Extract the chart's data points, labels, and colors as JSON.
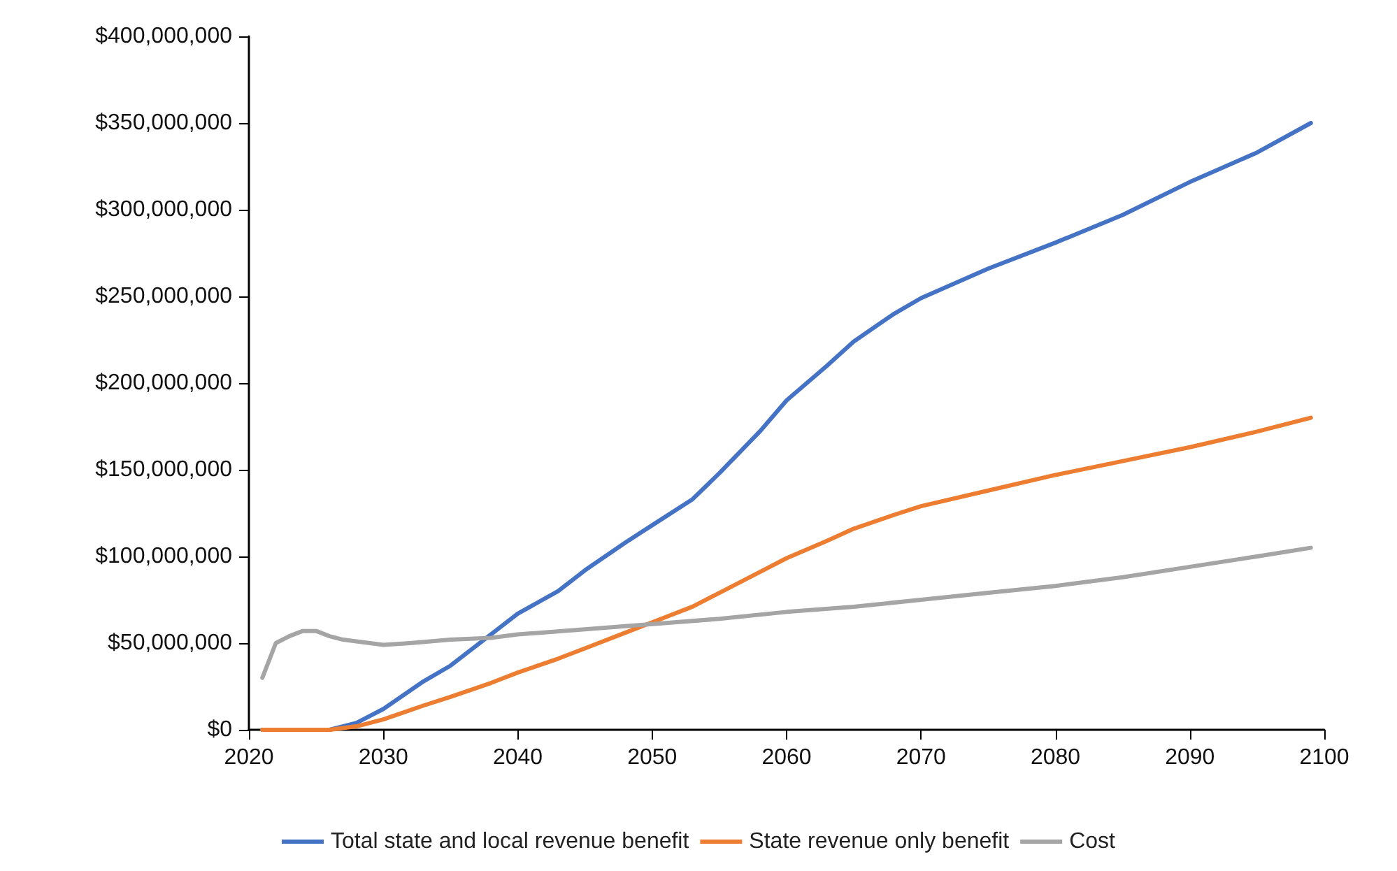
{
  "chart_data": {
    "type": "line",
    "legend": "bottom",
    "grid": false,
    "marker": "none",
    "line_style": "solid",
    "xlim": [
      2020,
      2100
    ],
    "xticks": [
      2020,
      2030,
      2040,
      2050,
      2060,
      2070,
      2080,
      2090,
      2100
    ],
    "ylim": [
      0,
      400000000
    ],
    "yticks": [
      {
        "value": 0,
        "label": "$0"
      },
      {
        "value": 50000000,
        "label": "$50,000,000"
      },
      {
        "value": 100000000,
        "label": "$100,000,000"
      },
      {
        "value": 150000000,
        "label": "$150,000,000"
      },
      {
        "value": 200000000,
        "label": "$200,000,000"
      },
      {
        "value": 250000000,
        "label": "$250,000,000"
      },
      {
        "value": 300000000,
        "label": "$300,000,000"
      },
      {
        "value": 350000000,
        "label": "$350,000,000"
      },
      {
        "value": 400000000,
        "label": "$400,000,000"
      }
    ],
    "series": [
      {
        "name": "Total state and local revenue benefit",
        "color": "#4472c4",
        "x": [
          2021,
          2024,
          2026,
          2028,
          2030,
          2033,
          2035,
          2038,
          2040,
          2043,
          2045,
          2048,
          2050,
          2053,
          2055,
          2058,
          2060,
          2063,
          2065,
          2068,
          2070,
          2075,
          2080,
          2085,
          2090,
          2095,
          2099
        ],
        "values": [
          0,
          0,
          0,
          4000000,
          12000000,
          28000000,
          37000000,
          55000000,
          67000000,
          80000000,
          92000000,
          108000000,
          118000000,
          133000000,
          148000000,
          172000000,
          190000000,
          210000000,
          224000000,
          240000000,
          249000000,
          266000000,
          281000000,
          297000000,
          316000000,
          333000000,
          350000000
        ]
      },
      {
        "name": "State revenue only benefit",
        "color": "#ed7d31",
        "x": [
          2021,
          2024,
          2026,
          2028,
          2030,
          2033,
          2035,
          2038,
          2040,
          2043,
          2045,
          2048,
          2050,
          2053,
          2055,
          2058,
          2060,
          2063,
          2065,
          2068,
          2070,
          2075,
          2080,
          2085,
          2090,
          2095,
          2099
        ],
        "values": [
          0,
          0,
          0,
          2000000,
          6000000,
          14000000,
          19000000,
          27000000,
          33000000,
          41000000,
          47000000,
          56000000,
          62000000,
          71000000,
          79000000,
          91000000,
          99000000,
          109000000,
          116000000,
          124000000,
          129000000,
          138000000,
          147000000,
          155000000,
          163000000,
          172000000,
          180000000
        ]
      },
      {
        "name": "Cost",
        "color": "#a5a5a5",
        "x": [
          2021,
          2022,
          2023,
          2024,
          2025,
          2026,
          2027,
          2028,
          2029,
          2030,
          2032,
          2035,
          2038,
          2040,
          2045,
          2050,
          2055,
          2060,
          2065,
          2070,
          2075,
          2080,
          2085,
          2090,
          2095,
          2099
        ],
        "values": [
          30000000,
          50000000,
          54000000,
          57000000,
          57000000,
          54000000,
          52000000,
          51000000,
          50000000,
          49000000,
          50000000,
          52000000,
          53000000,
          55000000,
          58000000,
          61000000,
          64000000,
          68000000,
          71000000,
          75000000,
          79000000,
          83000000,
          88000000,
          94000000,
          100000000,
          105000000
        ]
      }
    ]
  }
}
